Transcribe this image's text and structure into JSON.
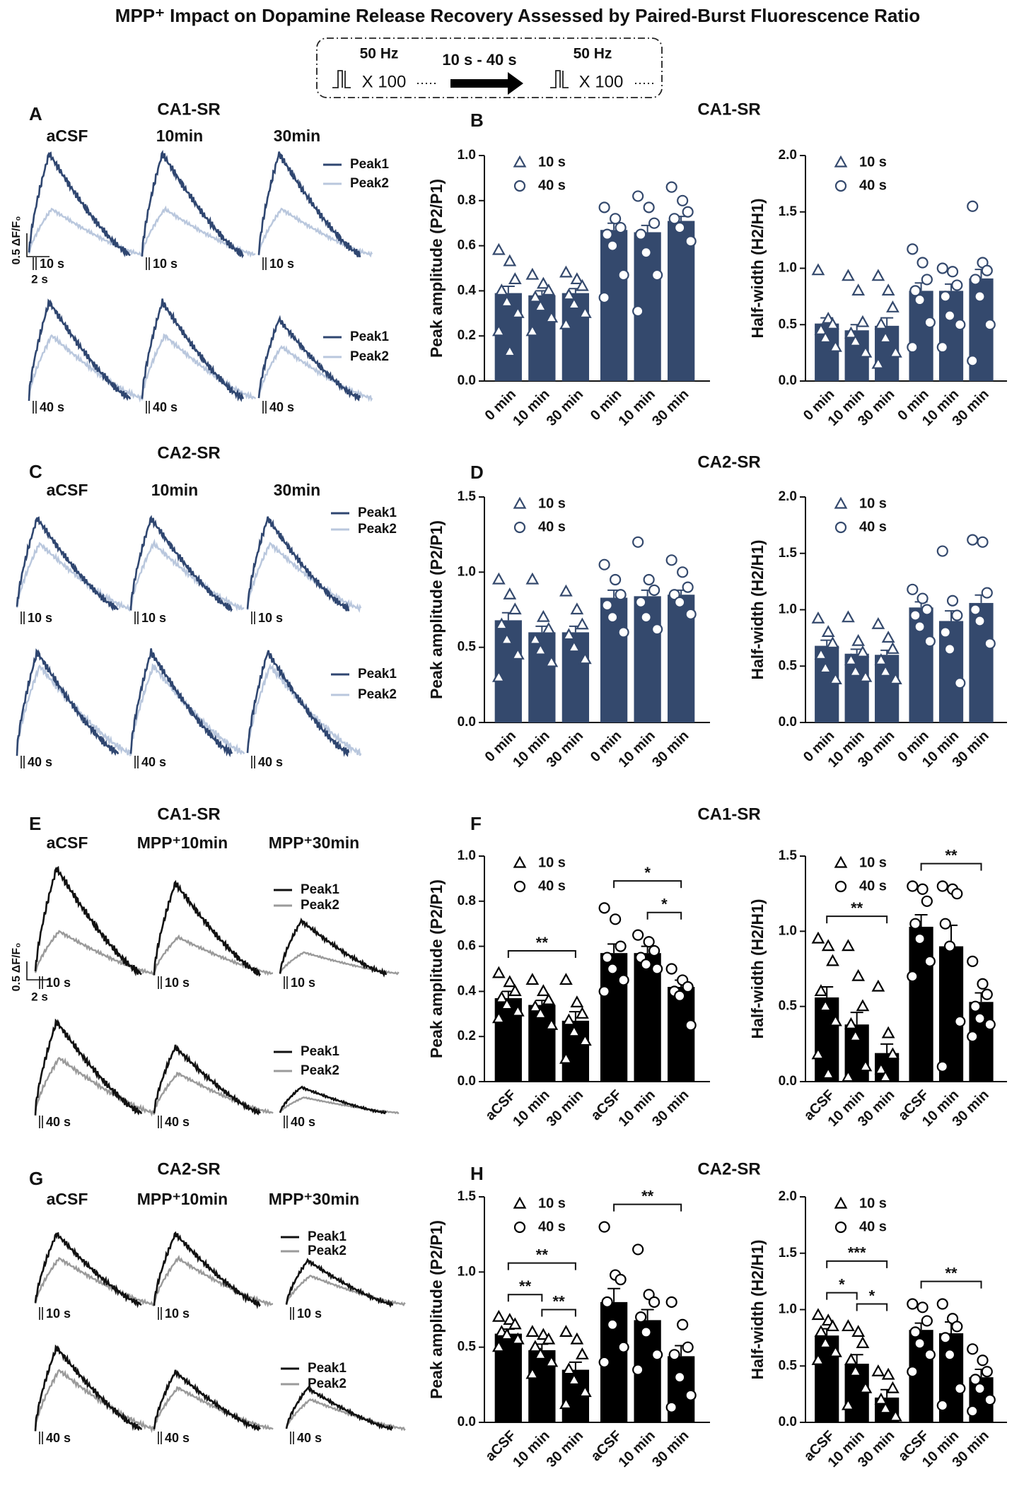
{
  "title": "MPP⁺ Impact on Dopamine Release Recovery Assessed by Paired-Burst Fluorescence Ratio",
  "protocol": {
    "burst1": {
      "frequency": "50 Hz",
      "count": "X 100"
    },
    "interval": "10 s - 40 s",
    "burst2": {
      "frequency": "50 Hz",
      "count": "X 100"
    }
  },
  "trace_panels": [
    {
      "letter": "A",
      "region": "CA1-SR",
      "columns": [
        "aCSF",
        "10min",
        "30min"
      ],
      "legend": [
        "Peak1",
        "Peak2"
      ],
      "intervals": [
        "10 s",
        "40 s"
      ],
      "scale": {
        "y": "0.5 ΔF/F₀",
        "x": "2 s"
      },
      "colors": [
        "#2f4670",
        "#b9c7dd"
      ]
    },
    {
      "letter": "C",
      "region": "CA2-SR",
      "columns": [
        "aCSF",
        "10min",
        "30min"
      ],
      "legend": [
        "Peak1",
        "Peak2"
      ],
      "intervals": [
        "10 s",
        "40 s"
      ],
      "colors": [
        "#2f4670",
        "#b9c7dd"
      ]
    },
    {
      "letter": "E",
      "region": "CA1-SR",
      "columns": [
        "aCSF",
        "MPP⁺10min",
        "MPP⁺30min"
      ],
      "legend": [
        "Peak1",
        "Peak2"
      ],
      "intervals": [
        "10 s",
        "40 s"
      ],
      "scale": {
        "y": "0.5 ΔF/F₀",
        "x": "2 s"
      },
      "colors": [
        "#111111",
        "#9a9a9a"
      ]
    },
    {
      "letter": "G",
      "region": "CA2-SR",
      "columns": [
        "aCSF",
        "MPP⁺10min",
        "MPP⁺30min"
      ],
      "legend": [
        "Peak1",
        "Peak2"
      ],
      "intervals": [
        "10 s",
        "40 s"
      ],
      "colors": [
        "#111111",
        "#9a9a9a"
      ]
    }
  ],
  "panels": [
    {
      "letter": "B",
      "title": "CA1-SR"
    },
    {
      "letter": "D",
      "title": "CA2-SR"
    },
    {
      "letter": "F",
      "title": "CA1-SR"
    },
    {
      "letter": "H",
      "title": "CA2-SR"
    }
  ],
  "chart_data": [
    {
      "type": "bar",
      "ylabel": "Peak amplitude (P2/P1)",
      "categories": [
        "0 min",
        "10 min",
        "30 min"
      ],
      "ylim": [
        0,
        1.0
      ],
      "yticks": [
        {
          "value": 0,
          "label": "0.0"
        },
        0.2,
        0.4,
        0.6,
        0.8,
        {
          "value": 1,
          "label": "1.0"
        }
      ],
      "color": "#34496d",
      "series": [
        {
          "name": "10 s",
          "marker": "triangle",
          "values": [
            0.39,
            0.38,
            0.39
          ],
          "errors": [
            0.03,
            0.02,
            0.02
          ],
          "points": [
            [
              0.58,
              0.53,
              0.45,
              0.4,
              0.35,
              0.3,
              0.22,
              0.13
            ],
            [
              0.47,
              0.43,
              0.4,
              0.37,
              0.33,
              0.28,
              0.22
            ],
            [
              0.48,
              0.45,
              0.42,
              0.38,
              0.34,
              0.3,
              0.25
            ]
          ]
        },
        {
          "name": "40 s",
          "marker": "circle",
          "values": [
            0.67,
            0.66,
            0.71
          ],
          "errors": [
            0.03,
            0.03,
            0.02
          ],
          "points": [
            [
              0.77,
              0.72,
              0.68,
              0.65,
              0.6,
              0.47,
              0.37
            ],
            [
              0.82,
              0.77,
              0.7,
              0.65,
              0.57,
              0.47,
              0.31
            ],
            [
              0.86,
              0.8,
              0.75,
              0.72,
              0.68,
              0.62
            ]
          ]
        }
      ],
      "brackets": []
    },
    {
      "type": "bar",
      "ylabel": "Half-width (H2/H1)",
      "categories": [
        "0 min",
        "10 min",
        "30 min"
      ],
      "ylim": [
        0,
        2.0
      ],
      "yticks": [
        {
          "value": 0,
          "label": "0.0"
        },
        0.5,
        {
          "value": 1,
          "label": "1.0"
        },
        1.5,
        {
          "value": 2,
          "label": "2.0"
        }
      ],
      "color": "#34496d",
      "series": [
        {
          "name": "10 s",
          "marker": "triangle",
          "values": [
            0.51,
            0.45,
            0.49
          ],
          "errors": [
            0.05,
            0.05,
            0.07
          ],
          "points": [
            [
              0.98,
              0.55,
              0.5,
              0.45,
              0.38,
              0.3
            ],
            [
              0.93,
              0.8,
              0.52,
              0.42,
              0.35,
              0.25
            ],
            [
              0.93,
              0.8,
              0.65,
              0.5,
              0.38,
              0.25,
              0.15
            ]
          ]
        },
        {
          "name": "40 s",
          "marker": "circle",
          "values": [
            0.8,
            0.8,
            0.91
          ],
          "errors": [
            0.07,
            0.06,
            0.08
          ],
          "points": [
            [
              1.17,
              1.05,
              0.9,
              0.8,
              0.72,
              0.52,
              0.3
            ],
            [
              1.0,
              0.97,
              0.85,
              0.75,
              0.58,
              0.5,
              0.3
            ],
            [
              1.55,
              1.05,
              0.98,
              0.9,
              0.75,
              0.5,
              0.18
            ]
          ]
        }
      ],
      "brackets": []
    },
    {
      "type": "bar",
      "ylabel": "Peak amplitude (P2/P1)",
      "categories": [
        "0 min",
        "10 min",
        "30 min"
      ],
      "ylim": [
        0,
        1.5
      ],
      "yticks": [
        {
          "value": 0,
          "label": "0.0"
        },
        0.5,
        {
          "value": 1,
          "label": "1.0"
        },
        1.5
      ],
      "color": "#34496d",
      "series": [
        {
          "name": "10 s",
          "marker": "triangle",
          "values": [
            0.68,
            0.6,
            0.6
          ],
          "errors": [
            0.05,
            0.04,
            0.04
          ],
          "points": [
            [
              0.95,
              0.85,
              0.75,
              0.65,
              0.55,
              0.45,
              0.3
            ],
            [
              0.95,
              0.7,
              0.62,
              0.55,
              0.48,
              0.4
            ],
            [
              0.87,
              0.75,
              0.65,
              0.58,
              0.5,
              0.42
            ]
          ]
        },
        {
          "name": "40 s",
          "marker": "circle",
          "values": [
            0.83,
            0.84,
            0.85
          ],
          "errors": [
            0.05,
            0.04,
            0.03
          ],
          "points": [
            [
              1.05,
              0.95,
              0.85,
              0.78,
              0.7,
              0.6
            ],
            [
              1.2,
              0.95,
              0.88,
              0.8,
              0.7,
              0.62
            ],
            [
              1.08,
              1.0,
              0.9,
              0.85,
              0.8,
              0.72
            ]
          ]
        }
      ],
      "brackets": []
    },
    {
      "type": "bar",
      "ylabel": "Half-width (H2/H1)",
      "categories": [
        "0 min",
        "10 min",
        "30 min"
      ],
      "ylim": [
        0,
        2.0
      ],
      "yticks": [
        {
          "value": 0,
          "label": "0.0"
        },
        0.5,
        {
          "value": 1,
          "label": "1.0"
        },
        1.5,
        {
          "value": 2,
          "label": "2.0"
        }
      ],
      "color": "#34496d",
      "series": [
        {
          "name": "10 s",
          "marker": "triangle",
          "values": [
            0.68,
            0.61,
            0.6
          ],
          "errors": [
            0.05,
            0.04,
            0.04
          ],
          "points": [
            [
              0.92,
              0.8,
              0.7,
              0.6,
              0.48,
              0.38
            ],
            [
              0.93,
              0.72,
              0.62,
              0.55,
              0.45,
              0.4
            ],
            [
              0.87,
              0.75,
              0.65,
              0.55,
              0.45,
              0.38
            ]
          ]
        },
        {
          "name": "40 s",
          "marker": "circle",
          "values": [
            1.02,
            0.9,
            1.06
          ],
          "errors": [
            0.05,
            0.09,
            0.07
          ],
          "points": [
            [
              1.18,
              1.1,
              1.0,
              0.95,
              0.85,
              0.72
            ],
            [
              1.52,
              1.08,
              0.95,
              0.8,
              0.65,
              0.35
            ],
            [
              1.62,
              1.6,
              1.15,
              1.0,
              0.9,
              0.7
            ]
          ]
        }
      ],
      "brackets": []
    },
    {
      "type": "bar",
      "ylabel": "Peak amplitude (P2/P1)",
      "categories": [
        "aCSF",
        "10 min",
        "30 min"
      ],
      "ylim": [
        0,
        1.0
      ],
      "yticks": [
        {
          "value": 0,
          "label": "0.0"
        },
        0.2,
        0.4,
        0.6,
        0.8,
        {
          "value": 1,
          "label": "1.0"
        }
      ],
      "color": "#000000",
      "series": [
        {
          "name": "10 s",
          "marker": "triangle",
          "values": [
            0.37,
            0.34,
            0.27
          ],
          "errors": [
            0.03,
            0.02,
            0.04
          ],
          "points": [
            [
              0.48,
              0.44,
              0.4,
              0.37,
              0.34,
              0.31,
              0.28
            ],
            [
              0.45,
              0.4,
              0.36,
              0.33,
              0.3,
              0.25
            ],
            [
              0.45,
              0.35,
              0.3,
              0.27,
              0.22,
              0.18,
              0.1
            ]
          ]
        },
        {
          "name": "40 s",
          "marker": "circle",
          "values": [
            0.57,
            0.57,
            0.42
          ],
          "errors": [
            0.04,
            0.03,
            0.03
          ],
          "points": [
            [
              0.77,
              0.72,
              0.6,
              0.55,
              0.5,
              0.45,
              0.4
            ],
            [
              0.65,
              0.62,
              0.58,
              0.55,
              0.52,
              0.5
            ],
            [
              0.5,
              0.45,
              0.42,
              0.4,
              0.38,
              0.25
            ]
          ]
        }
      ],
      "brackets": [
        {
          "series": 0,
          "from": 0,
          "to": 2,
          "label": "**"
        },
        {
          "series": 1,
          "from": 1,
          "to": 2,
          "label": "*"
        },
        {
          "series": 1,
          "from": 0,
          "to": 2,
          "label": "*"
        }
      ]
    },
    {
      "type": "bar",
      "ylabel": "Half-width (H2/H1)",
      "categories": [
        "aCSF",
        "10 min",
        "30 min"
      ],
      "ylim": [
        0,
        1.5
      ],
      "yticks": [
        {
          "value": 0,
          "label": "0.0"
        },
        0.5,
        {
          "value": 1,
          "label": "1.0"
        },
        1.5
      ],
      "color": "#000000",
      "series": [
        {
          "name": "10 s",
          "marker": "triangle",
          "values": [
            0.56,
            0.38,
            0.19
          ],
          "errors": [
            0.07,
            0.08,
            0.06
          ],
          "points": [
            [
              0.95,
              0.9,
              0.8,
              0.6,
              0.5,
              0.4,
              0.18,
              0.05
            ],
            [
              0.9,
              0.7,
              0.5,
              0.38,
              0.3,
              0.1,
              0.03
            ],
            [
              0.63,
              0.32,
              0.18,
              0.08,
              0.03
            ]
          ]
        },
        {
          "name": "40 s",
          "marker": "circle",
          "values": [
            1.03,
            0.9,
            0.53
          ],
          "errors": [
            0.08,
            0.14,
            0.06
          ],
          "points": [
            [
              1.3,
              1.28,
              1.2,
              1.05,
              0.95,
              0.8,
              0.7
            ],
            [
              1.3,
              1.28,
              1.25,
              1.05,
              0.9,
              0.4,
              0.1
            ],
            [
              0.8,
              0.65,
              0.58,
              0.5,
              0.42,
              0.38,
              0.3
            ]
          ]
        }
      ],
      "brackets": [
        {
          "series": 0,
          "from": 0,
          "to": 2,
          "label": "**"
        },
        {
          "series": 1,
          "from": 0,
          "to": 2,
          "label": "**"
        }
      ]
    },
    {
      "type": "bar",
      "ylabel": "Peak amplitude (P2/P1)",
      "categories": [
        "aCSF",
        "10 min",
        "30 min"
      ],
      "ylim": [
        0,
        1.5
      ],
      "yticks": [
        {
          "value": 0,
          "label": "0.0"
        },
        0.5,
        {
          "value": 1,
          "label": "1.0"
        },
        1.5
      ],
      "color": "#000000",
      "series": [
        {
          "name": "10 s",
          "marker": "triangle",
          "values": [
            0.59,
            0.48,
            0.35
          ],
          "errors": [
            0.03,
            0.04,
            0.05
          ],
          "points": [
            [
              0.7,
              0.68,
              0.65,
              0.6,
              0.58,
              0.55,
              0.5
            ],
            [
              0.6,
              0.58,
              0.55,
              0.5,
              0.45,
              0.4,
              0.32
            ],
            [
              0.6,
              0.55,
              0.45,
              0.35,
              0.28,
              0.2,
              0.12
            ]
          ]
        },
        {
          "name": "40 s",
          "marker": "circle",
          "values": [
            0.8,
            0.68,
            0.44
          ],
          "errors": [
            0.09,
            0.07,
            0.07
          ],
          "points": [
            [
              1.3,
              0.98,
              0.95,
              0.8,
              0.65,
              0.5,
              0.4
            ],
            [
              1.15,
              0.85,
              0.8,
              0.7,
              0.6,
              0.45,
              0.35
            ],
            [
              0.8,
              0.65,
              0.5,
              0.45,
              0.3,
              0.18,
              0.1
            ]
          ]
        }
      ],
      "brackets": [
        {
          "series": 0,
          "from": 0,
          "to": 1,
          "label": "**"
        },
        {
          "series": 0,
          "from": 1,
          "to": 2,
          "label": "**"
        },
        {
          "series": 0,
          "from": 0,
          "to": 2,
          "label": "**"
        },
        {
          "series": 1,
          "from": 0,
          "to": 2,
          "label": "**"
        }
      ]
    },
    {
      "type": "bar",
      "ylabel": "Half-width (H2/H1)",
      "categories": [
        "aCSF",
        "10 min",
        "30 min"
      ],
      "ylim": [
        0,
        2.0
      ],
      "yticks": [
        {
          "value": 0,
          "label": "0.0"
        },
        0.5,
        {
          "value": 1,
          "label": "1.0"
        },
        1.5,
        {
          "value": 2,
          "label": "2.0"
        }
      ],
      "color": "#000000",
      "series": [
        {
          "name": "10 s",
          "marker": "triangle",
          "values": [
            0.77,
            0.52,
            0.22
          ],
          "errors": [
            0.06,
            0.08,
            0.07
          ],
          "points": [
            [
              0.95,
              0.9,
              0.85,
              0.8,
              0.7,
              0.62,
              0.55
            ],
            [
              0.85,
              0.8,
              0.7,
              0.55,
              0.45,
              0.3,
              0.15
            ],
            [
              0.45,
              0.42,
              0.3,
              0.2,
              0.12,
              0.05
            ]
          ]
        },
        {
          "name": "40 s",
          "marker": "circle",
          "values": [
            0.82,
            0.79,
            0.4
          ],
          "errors": [
            0.06,
            0.1,
            0.07
          ],
          "points": [
            [
              1.05,
              1.02,
              0.9,
              0.8,
              0.7,
              0.6,
              0.45
            ],
            [
              1.05,
              0.92,
              0.85,
              0.75,
              0.6,
              0.3,
              0.15
            ],
            [
              0.65,
              0.55,
              0.45,
              0.38,
              0.3,
              0.2,
              0.1
            ]
          ]
        }
      ],
      "brackets": [
        {
          "series": 0,
          "from": 0,
          "to": 1,
          "label": "*"
        },
        {
          "series": 0,
          "from": 1,
          "to": 2,
          "label": "*"
        },
        {
          "series": 0,
          "from": 0,
          "to": 2,
          "label": "***"
        },
        {
          "series": 1,
          "from": 0,
          "to": 2,
          "label": "**"
        }
      ]
    }
  ]
}
